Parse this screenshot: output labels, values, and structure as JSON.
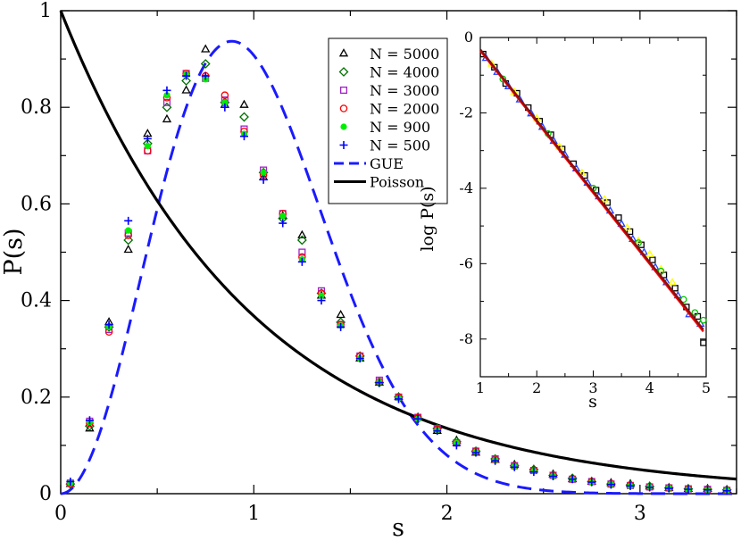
{
  "chart_data": [
    {
      "type": "scatter",
      "title": "",
      "xlabel": "s",
      "ylabel": "P(s)",
      "xlim": [
        0,
        3.5
      ],
      "ylim": [
        0,
        1
      ],
      "x_ticks": [
        "0",
        "1",
        "2",
        "3"
      ],
      "y_ticks": [
        "0",
        "0.2",
        "0.4",
        "0.6",
        "0.8",
        "1"
      ],
      "grid": false,
      "legend_position": "top-right",
      "x": [
        0.05,
        0.15,
        0.25,
        0.35,
        0.45,
        0.55,
        0.65,
        0.75,
        0.85,
        0.95,
        1.05,
        1.15,
        1.25,
        1.35,
        1.45,
        1.55,
        1.65,
        1.75,
        1.85,
        1.95,
        2.05,
        2.15,
        2.25,
        2.35,
        2.45,
        2.55,
        2.65,
        2.75,
        2.85,
        2.95,
        3.05,
        3.15,
        3.25,
        3.35,
        3.45
      ],
      "series": [
        {
          "name": "N = 5000",
          "marker": "triangle",
          "color": "#000000",
          "values": [
            0.02,
            0.135,
            0.355,
            0.505,
            0.745,
            0.775,
            0.835,
            0.92,
            0.805,
            0.805,
            0.655,
            0.575,
            0.535,
            0.41,
            0.37,
            0.28,
            0.23,
            0.2,
            0.158,
            0.13,
            0.11,
            0.085,
            0.07,
            0.06,
            0.05,
            0.04,
            0.03,
            0.025,
            0.022,
            0.02,
            0.015,
            0.012,
            0.01,
            0.01,
            0.008
          ]
        },
        {
          "name": "N = 4000",
          "marker": "diamond",
          "color": "#007000",
          "values": [
            0.02,
            0.14,
            0.345,
            0.525,
            0.725,
            0.8,
            0.855,
            0.89,
            0.81,
            0.78,
            0.665,
            0.57,
            0.525,
            0.415,
            0.355,
            0.285,
            0.23,
            0.2,
            0.155,
            0.135,
            0.108,
            0.088,
            0.072,
            0.058,
            0.05,
            0.038,
            0.032,
            0.025,
            0.02,
            0.018,
            0.015,
            0.012,
            0.01,
            0.009,
            0.008
          ]
        },
        {
          "name": "N = 3000",
          "marker": "square",
          "color": "#a020c8",
          "values": [
            0.022,
            0.15,
            0.34,
            0.54,
            0.71,
            0.81,
            0.87,
            0.86,
            0.815,
            0.755,
            0.67,
            0.58,
            0.5,
            0.42,
            0.35,
            0.285,
            0.235,
            0.2,
            0.158,
            0.135,
            0.105,
            0.088,
            0.072,
            0.058,
            0.048,
            0.038,
            0.03,
            0.025,
            0.02,
            0.017,
            0.014,
            0.012,
            0.01,
            0.009,
            0.007
          ]
        },
        {
          "name": "N = 2000",
          "marker": "circle",
          "color": "#ff0000",
          "values": [
            0.02,
            0.145,
            0.335,
            0.535,
            0.71,
            0.82,
            0.87,
            0.865,
            0.825,
            0.75,
            0.66,
            0.58,
            0.49,
            0.415,
            0.35,
            0.285,
            0.232,
            0.2,
            0.158,
            0.133,
            0.105,
            0.088,
            0.07,
            0.057,
            0.048,
            0.038,
            0.03,
            0.025,
            0.02,
            0.017,
            0.014,
            0.012,
            0.01,
            0.008,
            0.007
          ]
        },
        {
          "name": "N = 900",
          "marker": "dot",
          "color": "#00ee00",
          "values": [
            0.022,
            0.148,
            0.345,
            0.545,
            0.72,
            0.825,
            0.868,
            0.858,
            0.81,
            0.745,
            0.665,
            0.575,
            0.485,
            0.41,
            0.348,
            0.28,
            0.232,
            0.198,
            0.155,
            0.132,
            0.105,
            0.087,
            0.07,
            0.057,
            0.047,
            0.037,
            0.03,
            0.024,
            0.02,
            0.016,
            0.014,
            0.012,
            0.009,
            0.008,
            0.007
          ]
        },
        {
          "name": "N = 500",
          "marker": "plus",
          "color": "#0000ff",
          "values": [
            0.025,
            0.152,
            0.35,
            0.565,
            0.735,
            0.835,
            0.865,
            0.865,
            0.8,
            0.74,
            0.65,
            0.56,
            0.48,
            0.4,
            0.345,
            0.28,
            0.23,
            0.196,
            0.155,
            0.13,
            0.1,
            0.085,
            0.068,
            0.055,
            0.045,
            0.036,
            0.03,
            0.024,
            0.019,
            0.016,
            0.013,
            0.011,
            0.009,
            0.008,
            0.006
          ]
        }
      ],
      "curves": [
        {
          "name": "GUE",
          "style": "dashed",
          "color": "#1a1aff",
          "formula": "32/pi^2 * s^2 * exp(-4 s^2 / pi)"
        },
        {
          "name": "Poisson",
          "style": "solid",
          "color": "#000000",
          "formula": "exp(-s)"
        }
      ]
    },
    {
      "type": "scatter",
      "title": "",
      "xlabel": "s",
      "ylabel": "log P(s)",
      "xlim": [
        1,
        5
      ],
      "ylim": [
        -9,
        0
      ],
      "x_ticks": [
        "1",
        "2",
        "3",
        "4",
        "5"
      ],
      "y_ticks": [
        "0",
        "-2",
        "-4",
        "-6",
        "-8"
      ],
      "grid": false,
      "series": [
        {
          "marker": "square",
          "color": "#000000",
          "x": [
            1.05,
            1.25,
            1.45,
            1.65,
            1.85,
            2.05,
            2.25,
            2.45,
            2.65,
            2.85,
            3.05,
            3.25,
            3.45,
            3.65,
            3.85,
            4.05,
            4.25,
            4.45,
            4.65,
            4.85,
            4.95
          ],
          "values": [
            -0.44,
            -0.79,
            -1.22,
            -1.48,
            -1.86,
            -2.22,
            -2.58,
            -2.96,
            -3.35,
            -3.66,
            -4.05,
            -4.38,
            -4.78,
            -5.15,
            -5.5,
            -5.9,
            -6.3,
            -6.65,
            -7.15,
            -7.4,
            -8.1
          ]
        },
        {
          "marker": "triangle",
          "color": "#2040ff",
          "x": [
            1.1,
            1.3,
            1.5,
            1.7,
            1.9,
            2.1,
            2.3,
            2.5,
            2.7,
            2.9,
            3.1,
            3.3,
            3.5,
            3.7,
            3.9,
            4.1,
            4.3,
            4.5,
            4.7,
            4.9
          ],
          "values": [
            -0.55,
            -0.92,
            -1.3,
            -1.65,
            -2.02,
            -2.38,
            -2.75,
            -3.12,
            -3.48,
            -3.86,
            -4.22,
            -4.6,
            -4.95,
            -5.35,
            -5.7,
            -6.1,
            -6.5,
            -6.85,
            -7.35,
            -7.6
          ]
        },
        {
          "marker": "triangle",
          "color": "#ffff00",
          "x": [
            1.2,
            1.6,
            2.0,
            2.4,
            2.8,
            3.2,
            3.6,
            3.8,
            4.0,
            4.2,
            4.4
          ],
          "values": [
            -0.7,
            -1.45,
            -2.15,
            -2.9,
            -3.6,
            -4.3,
            -5.05,
            -5.4,
            -5.75,
            -6.15,
            -6.5
          ]
        },
        {
          "marker": "circle",
          "color": "#00c000",
          "x": [
            1.4,
            2.2,
            3.0,
            3.8,
            4.2,
            4.6,
            4.8,
            4.95
          ],
          "values": [
            -1.1,
            -2.55,
            -4.0,
            -5.45,
            -6.2,
            -6.95,
            -7.3,
            -7.5
          ]
        }
      ],
      "fit_lines": [
        {
          "color": "#ff0000",
          "from": [
            1.0,
            -0.35
          ],
          "to": [
            4.95,
            -7.8
          ]
        },
        {
          "color": "#8a1010",
          "from": [
            1.0,
            -0.32
          ],
          "to": [
            4.95,
            -7.75
          ]
        }
      ]
    }
  ]
}
